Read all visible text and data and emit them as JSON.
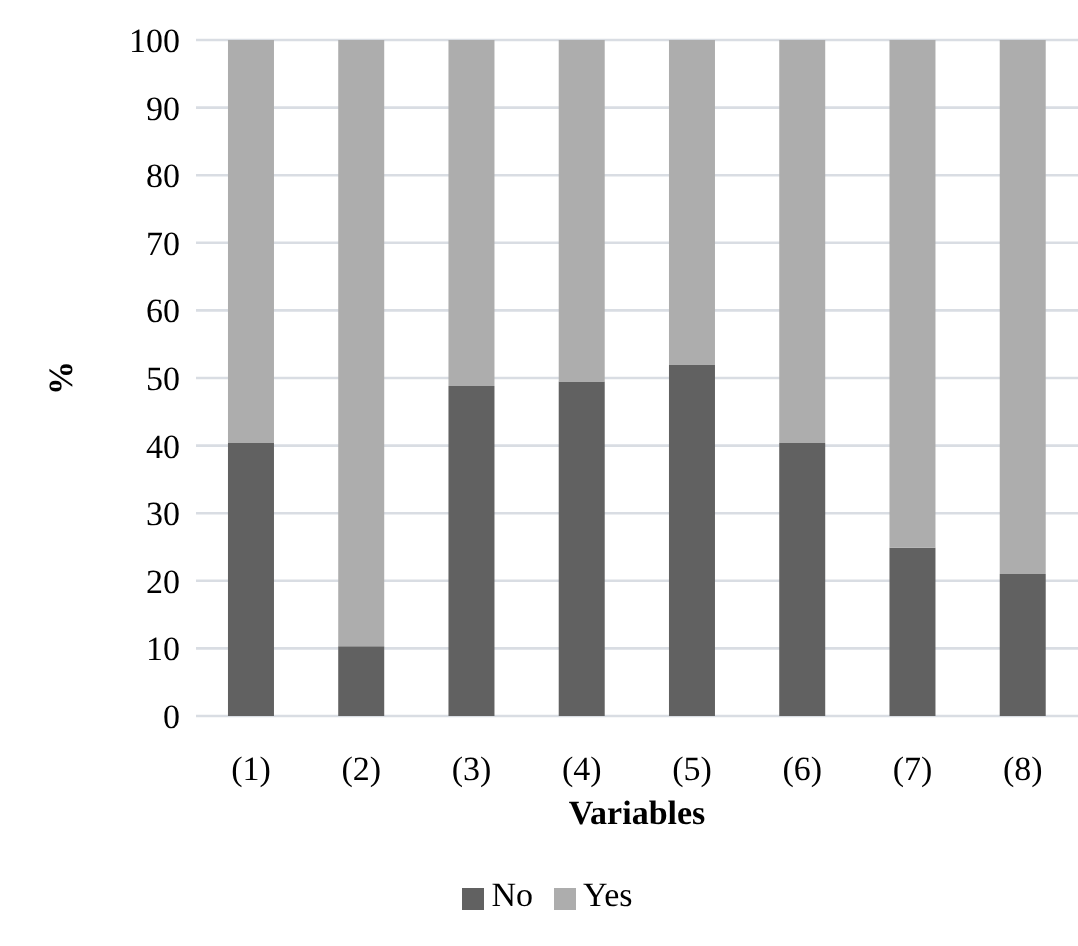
{
  "chart_data": {
    "type": "bar",
    "stacked": true,
    "xlabel": "Variables",
    "ylabel": "%",
    "categories": [
      "(1)",
      "(2)",
      "(3)",
      "(4)",
      "(5)",
      "(6)",
      "(7)",
      "(8)"
    ],
    "series": [
      {
        "name": "No",
        "color": "#616161",
        "values": [
          40.4,
          10.3,
          48.8,
          49.5,
          52.0,
          40.4,
          24.9,
          21.0
        ]
      },
      {
        "name": "Yes",
        "color": "#adadad",
        "values": [
          59.6,
          89.7,
          51.2,
          50.5,
          48.0,
          59.6,
          75.1,
          79.0
        ]
      }
    ],
    "ylim": [
      0,
      100
    ],
    "yticks": [
      0,
      10,
      20,
      30,
      40,
      50,
      60,
      70,
      80,
      90,
      100
    ],
    "grid": "y",
    "legend": "bottom"
  }
}
